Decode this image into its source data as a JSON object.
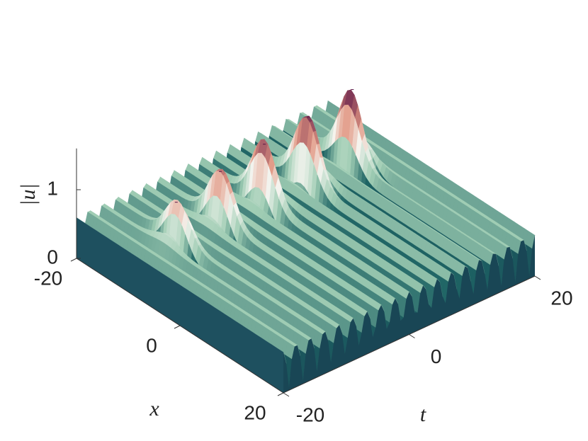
{
  "chart_data": {
    "type": "surface3d",
    "zlabel": "|u|",
    "xlabel": "x",
    "tlabel": "t",
    "xlim": [
      -20,
      20
    ],
    "xticks": [
      -20,
      0,
      20
    ],
    "tlim": [
      -20,
      20
    ],
    "tticks": [
      -20,
      0,
      20
    ],
    "zlim": [
      0,
      1.6
    ],
    "zticks": [
      0,
      1
    ],
    "peaks": {
      "t": [
        -14,
        -7,
        0,
        7,
        14
      ],
      "x": [
        -8,
        -8,
        -8,
        -8,
        -8
      ],
      "height": [
        1.15,
        1.3,
        1.4,
        1.5,
        1.6
      ]
    }
  }
}
